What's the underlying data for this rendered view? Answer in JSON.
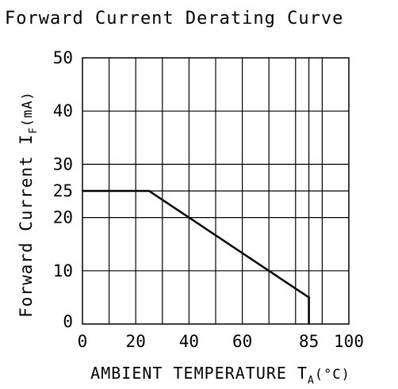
{
  "chart_data": {
    "type": "line",
    "title": "Forward Current Derating Curve",
    "ylabel_main": "Forward Current I",
    "ylabel_sub": "F",
    "ylabel_unit": "(mA)",
    "xlabel_main": "AMBIENT TEMPERATURE T",
    "xlabel_sub": "A",
    "xlabel_unit": "(°C)",
    "xlim": [
      0,
      100
    ],
    "ylim": [
      0,
      50
    ],
    "grid": true,
    "x_grid_values": [
      0,
      10,
      20,
      30,
      40,
      50,
      60,
      70,
      80,
      85,
      90,
      100
    ],
    "y_grid_values": [
      0,
      10,
      20,
      25,
      30,
      40,
      50
    ],
    "x_ticks": [
      {
        "value": 0,
        "label": "0"
      },
      {
        "value": 20,
        "label": "20"
      },
      {
        "value": 40,
        "label": "40"
      },
      {
        "value": 60,
        "label": "60"
      },
      {
        "value": 85,
        "label": "85"
      },
      {
        "value": 100,
        "label": "100"
      }
    ],
    "y_ticks": [
      {
        "value": 0,
        "label": "0"
      },
      {
        "value": 10,
        "label": "10"
      },
      {
        "value": 20,
        "label": "20"
      },
      {
        "value": 25,
        "label": "25"
      },
      {
        "value": 30,
        "label": "30"
      },
      {
        "value": 40,
        "label": "40"
      },
      {
        "value": 50,
        "label": "50"
      }
    ],
    "series": [
      {
        "x": [
          0,
          25,
          85,
          85
        ],
        "y": [
          25,
          25,
          5,
          0
        ],
        "color": "#000000"
      }
    ]
  }
}
